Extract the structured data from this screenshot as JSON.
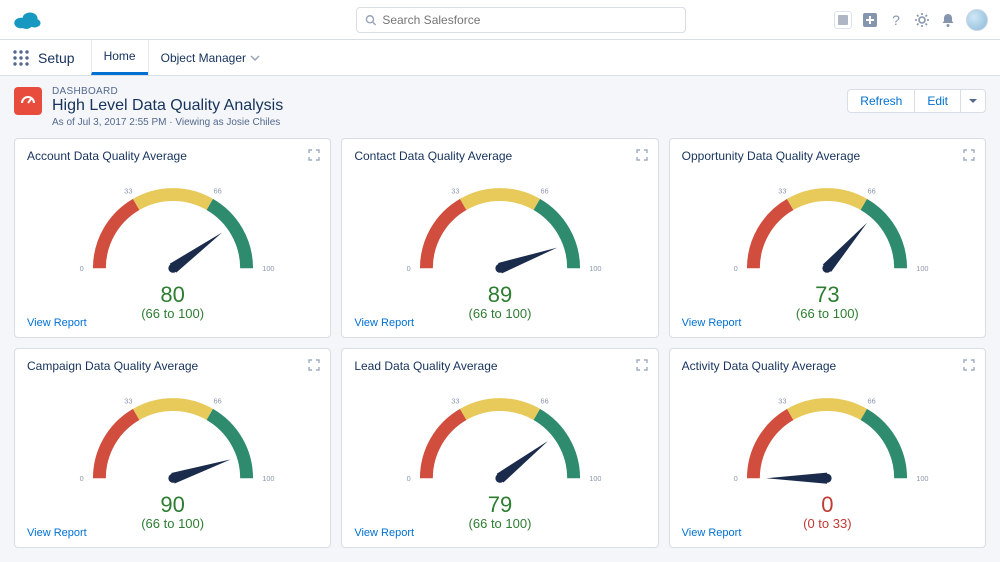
{
  "global": {
    "search_placeholder": "Search Salesforce"
  },
  "context": {
    "app_name": "Setup",
    "tab_home": "Home",
    "tab_object_manager": "Object Manager"
  },
  "dashboard": {
    "crumb": "DASHBOARD",
    "title": "High Level Data Quality Analysis",
    "subtitle": "As of Jul 3, 2017 2:55 PM · Viewing as Josie Chiles",
    "btn_refresh": "Refresh",
    "btn_edit": "Edit",
    "view_report": "View Report"
  },
  "gauge_style": {
    "arc_stroke_width": 14,
    "band_red": "#d14d3e",
    "band_yellow": "#e8ca5b",
    "band_green": "#2e8b6d",
    "needle_fill": "#1b2b4b",
    "tick_color": "#8c98ad",
    "band_1_end_deg": 60,
    "band_2_end_deg": 120,
    "total_deg": 180,
    "ticks": [
      "0",
      "33",
      "66",
      "100"
    ]
  },
  "cards": [
    {
      "title": "Account Data Quality Average",
      "value": 80,
      "range": "(66 to 100)",
      "status": "green"
    },
    {
      "title": "Contact Data Quality Average",
      "value": 89,
      "range": "(66 to 100)",
      "status": "green"
    },
    {
      "title": "Opportunity Data Quality Average",
      "value": 73,
      "range": "(66 to 100)",
      "status": "green"
    },
    {
      "title": "Campaign Data Quality Average",
      "value": 90,
      "range": "(66 to 100)",
      "status": "green"
    },
    {
      "title": "Lead Data Quality Average",
      "value": 79,
      "range": "(66 to 100)",
      "status": "green"
    },
    {
      "title": "Activity Data Quality Average",
      "value": 0,
      "range": "(0 to 33)",
      "status": "red"
    }
  ]
}
